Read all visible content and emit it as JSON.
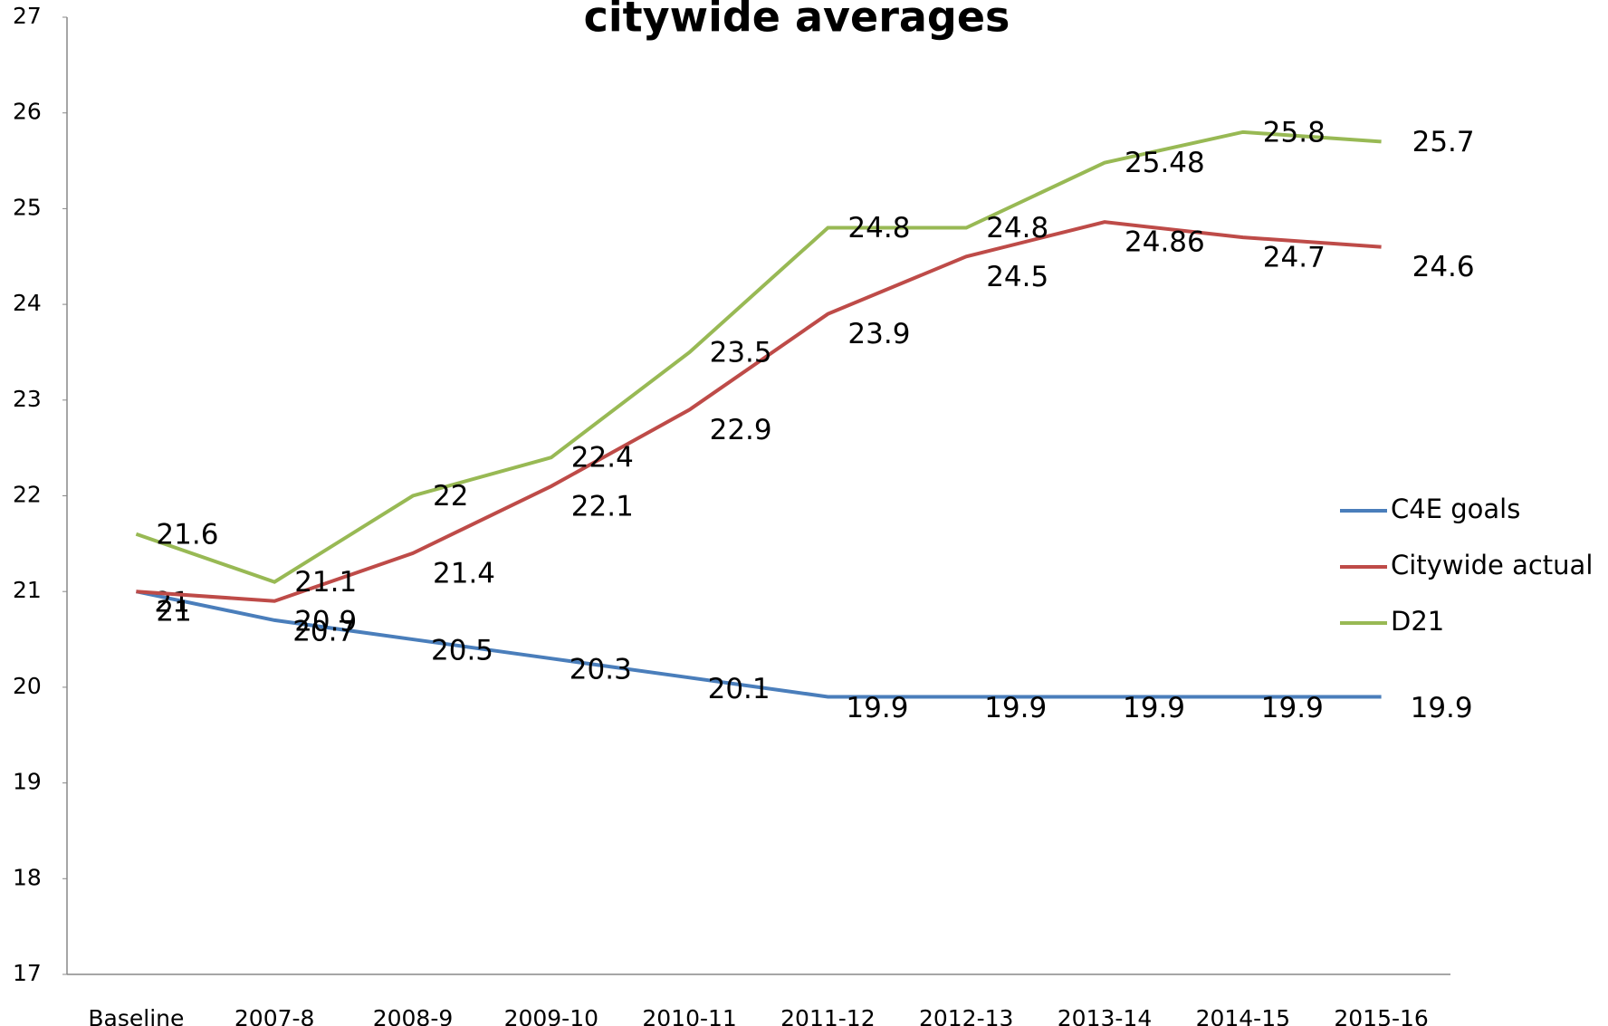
{
  "chart_data": {
    "type": "line",
    "title": "citywide averages",
    "categories": [
      "Baseline",
      "2007-8",
      "2008-9",
      "2009-10",
      "2010-11",
      "2011-12",
      "2012-13",
      "2013-14",
      "2014-15",
      "2015-16"
    ],
    "series": [
      {
        "name": "C4E goals",
        "color": "#4a7ebb",
        "values": [
          21,
          20.7,
          20.5,
          20.3,
          20.1,
          19.9,
          19.9,
          19.9,
          19.9,
          19.9
        ]
      },
      {
        "name": "Citywide actual",
        "color": "#be4b48",
        "values": [
          21,
          20.9,
          21.4,
          22.1,
          22.9,
          23.9,
          24.5,
          24.86,
          24.7,
          24.6
        ]
      },
      {
        "name": "D21",
        "color": "#98b954",
        "values": [
          21.6,
          21.1,
          22,
          22.4,
          23.5,
          24.8,
          24.8,
          25.48,
          25.8,
          25.7
        ]
      }
    ],
    "ylim": [
      17,
      27
    ],
    "yticks": [
      17,
      18,
      19,
      20,
      21,
      22,
      23,
      24,
      25,
      26,
      27
    ],
    "grid": false,
    "legend": "right"
  }
}
